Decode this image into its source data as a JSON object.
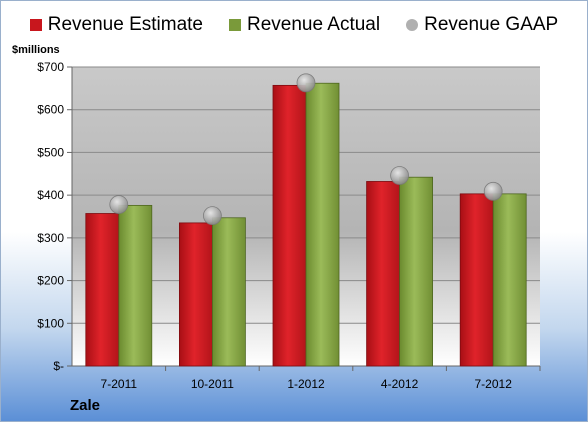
{
  "chart_data": {
    "type": "bar",
    "categories": [
      "7-2011",
      "10-2011",
      "1-2012",
      "4-2012",
      "7-2012"
    ],
    "series": [
      {
        "name": "Revenue Estimate",
        "kind": "bar",
        "color": "#c8161d",
        "values": [
          357,
          335,
          657,
          432,
          403
        ]
      },
      {
        "name": "Revenue Actual",
        "kind": "bar",
        "color": "#7a9a3a",
        "values": [
          376,
          347,
          662,
          442,
          403
        ]
      },
      {
        "name": "Revenue GAAP",
        "kind": "marker",
        "color": "#b0b0b0",
        "values": [
          378,
          352,
          663,
          446,
          409
        ]
      }
    ],
    "ylabel": "$millions",
    "ylim": [
      0,
      700
    ],
    "yticks": [
      0,
      100,
      200,
      300,
      400,
      500,
      600,
      700
    ],
    "ytick_labels": [
      "$-",
      "$100",
      "$200",
      "$300",
      "$400",
      "$500",
      "$600",
      "$700"
    ],
    "grid": true,
    "legend_position": "top"
  },
  "legend": [
    {
      "label": "Revenue Estimate",
      "color": "#c8161d",
      "shape": "square"
    },
    {
      "label": "Revenue Actual",
      "color": "#7a9a3a",
      "shape": "square"
    },
    {
      "label": "Revenue GAAP",
      "color": "#b0b0b0",
      "shape": "circle"
    }
  ],
  "footer": {
    "company": "Zale"
  }
}
